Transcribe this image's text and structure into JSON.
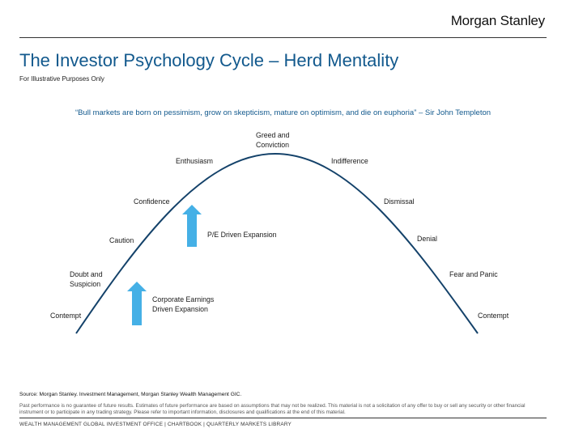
{
  "header": {
    "logo": "Morgan Stanley",
    "title": "The Investor Psychology Cycle – Herd Mentality",
    "subtitle": "For Illustrative Purposes Only",
    "quote": "“Bull markets are born on pessimism, grow on skepticism, mature on optimism, and die on euphoria” –  Sir John Templeton"
  },
  "cycle": {
    "stages": [
      "Contempt",
      "Doubt and\nSuspicion",
      "Caution",
      "Confidence",
      "Enthusiasm",
      "Greed and\nConviction",
      "Indifference",
      "Dismissal",
      "Denial",
      "Fear and Panic",
      "Contempt"
    ],
    "drivers": [
      "Corporate Earnings\nDriven Expansion",
      "P/E Driven Expansion"
    ]
  },
  "colors": {
    "accent": "#12598d",
    "arrow": "#45b0e6",
    "curve": "#14426a"
  },
  "footer": {
    "source": "Source: Morgan Stanley. Investment Management, Morgan Stanley Wealth Management GIC.",
    "disclaimer": "Past performance is no guarantee of future results. Estimates of future performance are based on assumptions that may not be realized. This material is not a solicitation of any offer to buy or sell any security or other financial instrument or to participate in any trading strategy. Please refer to important information, disclosures and qualifications at the end of this material.",
    "library": "WEALTH MANAGEMENT GLOBAL INVESTMENT OFFICE  |  CHARTBOOK  |  QUARTERLY MARKETS LIBRARY"
  }
}
